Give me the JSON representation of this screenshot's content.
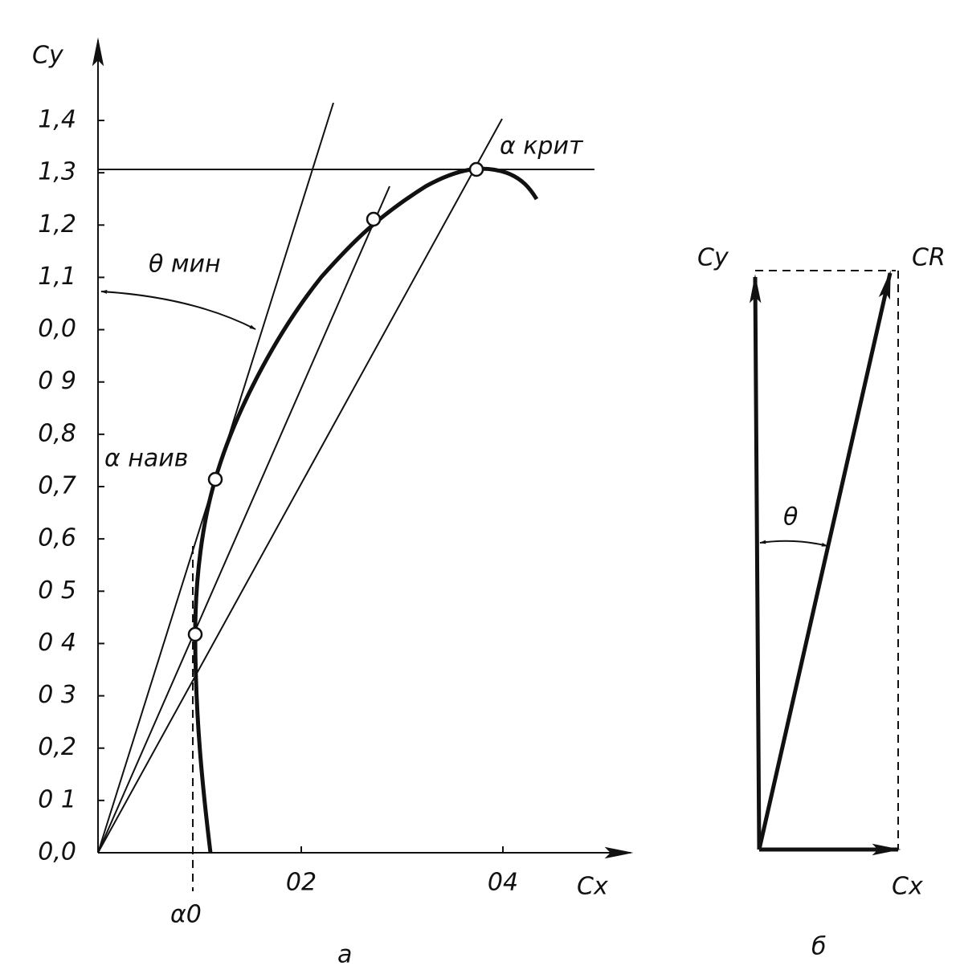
{
  "left": {
    "y_axis_label": "Cy",
    "x_axis_label": "Cx",
    "y_tick_labels": [
      "1,4",
      "1,3",
      "1,2",
      "1,1",
      "0,0",
      "0 9",
      "0,8",
      "0,7",
      "0,6",
      "0 5",
      "0 4",
      "0 3",
      "0,2",
      "0 1",
      "0,0"
    ],
    "x_tick_labels": [
      "02",
      "04"
    ],
    "annotations": {
      "theta_min": "θ мин",
      "alpha_crit": "α крит",
      "alpha_best": "α наив",
      "alpha_zero": "α0"
    },
    "caption": "а"
  },
  "right": {
    "cy_label": "Cy",
    "cr_label": "CR",
    "cx_label": "Cx",
    "theta_label": "θ",
    "caption": "б"
  }
}
